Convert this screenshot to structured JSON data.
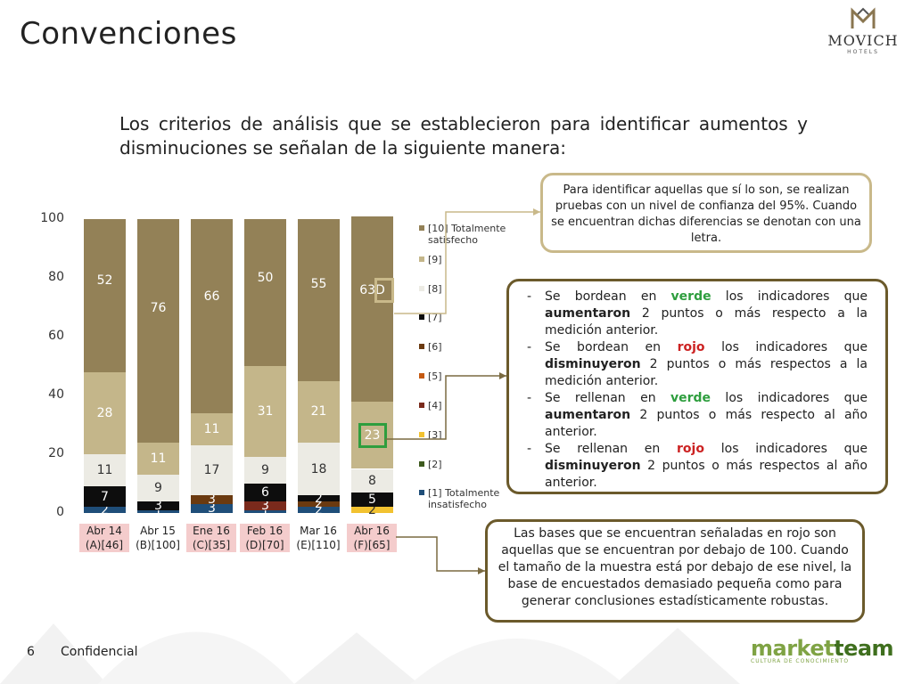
{
  "page": {
    "title": "Convenciones",
    "page_number": "6",
    "footer_label": "Confidencial"
  },
  "brand": {
    "name": "MOVICH",
    "sub": "HOTELS"
  },
  "footer_logo": {
    "name_a": "market",
    "name_b": "team",
    "tagline": "CULTURA DE CONOCIMIENTO"
  },
  "intro": "Los criterios de análisis que se establecieron para identificar aumentos y disminuciones se señalan de la siguiente manera:",
  "callout_letters": {
    "text": "Para identificar aquellas que sí lo son, se realizan pruebas con un nivel de confianza del 95%. Cuando se encuentran dichas diferencias se denotan con una letra."
  },
  "callout_rules": {
    "items": [
      {
        "a": "Se bordean en ",
        "b": "verde",
        "c": " los indicadores que ",
        "d": "aumentaron",
        "e": " 2 puntos o más respecto a la medición anterior."
      },
      {
        "a": "Se bordean en ",
        "b": "rojo",
        "c": " los indicadores que ",
        "d": "disminuyeron",
        "e": " 2 puntos o más respectos a la medición anterior."
      },
      {
        "a": "Se rellenan en ",
        "b": "verde",
        "c": " los indicadores que ",
        "d": "aumentaron",
        "e": " 2 puntos o más respecto al año anterior."
      },
      {
        "a": "Se rellenan en ",
        "b": "rojo",
        "c": " los indicadores que ",
        "d": "disminuyeron",
        "e": " 2 puntos o más respectos al año anterior."
      }
    ],
    "dash": "-"
  },
  "callout_bases": {
    "text": "Las bases que se encuentran señaladas en rojo son aquellas que se encuentran por debajo de 100. Cuando el tamaño de la muestra está por debajo de ese nivel, la base de encuestados demasiado pequeña como para generar conclusiones estadísticamente robustas."
  },
  "chart_data": {
    "type": "bar",
    "stacked": true,
    "ylim": [
      0,
      100
    ],
    "yticks": [
      "0",
      "20",
      "40",
      "60",
      "80",
      "100"
    ],
    "categories": [
      {
        "line1": "Abr 14",
        "line2": "(A)[46]",
        "highlight": true
      },
      {
        "line1": "Abr 15",
        "line2": "(B)[100]",
        "highlight": false
      },
      {
        "line1": "Ene 16",
        "line2": "(C)[35]",
        "highlight": true
      },
      {
        "line1": "Feb 16",
        "line2": "(D)[70]",
        "highlight": true
      },
      {
        "line1": "Mar 16",
        "line2": "(E)[110]",
        "highlight": false
      },
      {
        "line1": "Abr 16",
        "line2": "(F)[65]",
        "highlight": true
      }
    ],
    "series": [
      {
        "name": "[1] Totalmente insatisfecho",
        "color": "#1f4e79",
        "values": [
          2,
          1,
          3,
          1,
          2,
          0
        ]
      },
      {
        "name": "[2]",
        "color": "#3d5a1e",
        "values": [
          0,
          0,
          0,
          0,
          0,
          0
        ]
      },
      {
        "name": "[3]",
        "color": "#f2c230",
        "values": [
          0,
          0,
          0,
          0,
          0,
          2
        ]
      },
      {
        "name": "[4]",
        "color": "#7a2a1c",
        "values": [
          0,
          0,
          0,
          3,
          0,
          0
        ]
      },
      {
        "name": "[5]",
        "color": "#c55a11",
        "values": [
          0,
          0,
          0,
          0,
          0,
          0
        ]
      },
      {
        "name": "[6]",
        "color": "#6b3a10",
        "values": [
          0,
          0,
          3,
          0,
          2,
          0
        ]
      },
      {
        "name": "[7]",
        "color": "#0d0d0d",
        "values": [
          7,
          3,
          0,
          6,
          2,
          5
        ]
      },
      {
        "name": "[8]",
        "color": "#ecebe4",
        "values": [
          11,
          9,
          17,
          9,
          18,
          8
        ]
      },
      {
        "name": "[9]",
        "color": "#c4b68a",
        "values": [
          28,
          11,
          11,
          31,
          21,
          23
        ]
      },
      {
        "name": "[10] Totalmente satisfecho",
        "color": "#938157",
        "values": [
          52,
          76,
          66,
          50,
          55,
          63
        ]
      }
    ],
    "labels": [
      [
        [
          "2",
          "1"
        ],
        [
          "1"
        ],
        [
          "3"
        ],
        [
          "1",
          "3"
        ],
        [
          "2",
          "2"
        ],
        [
          "2"
        ]
      ]
    ],
    "annotations": [
      {
        "category": 5,
        "series": 9,
        "text": "63D",
        "border": "#c9b98a"
      },
      {
        "category": 5,
        "series": 8,
        "border": "#2e9e3e"
      }
    ]
  }
}
